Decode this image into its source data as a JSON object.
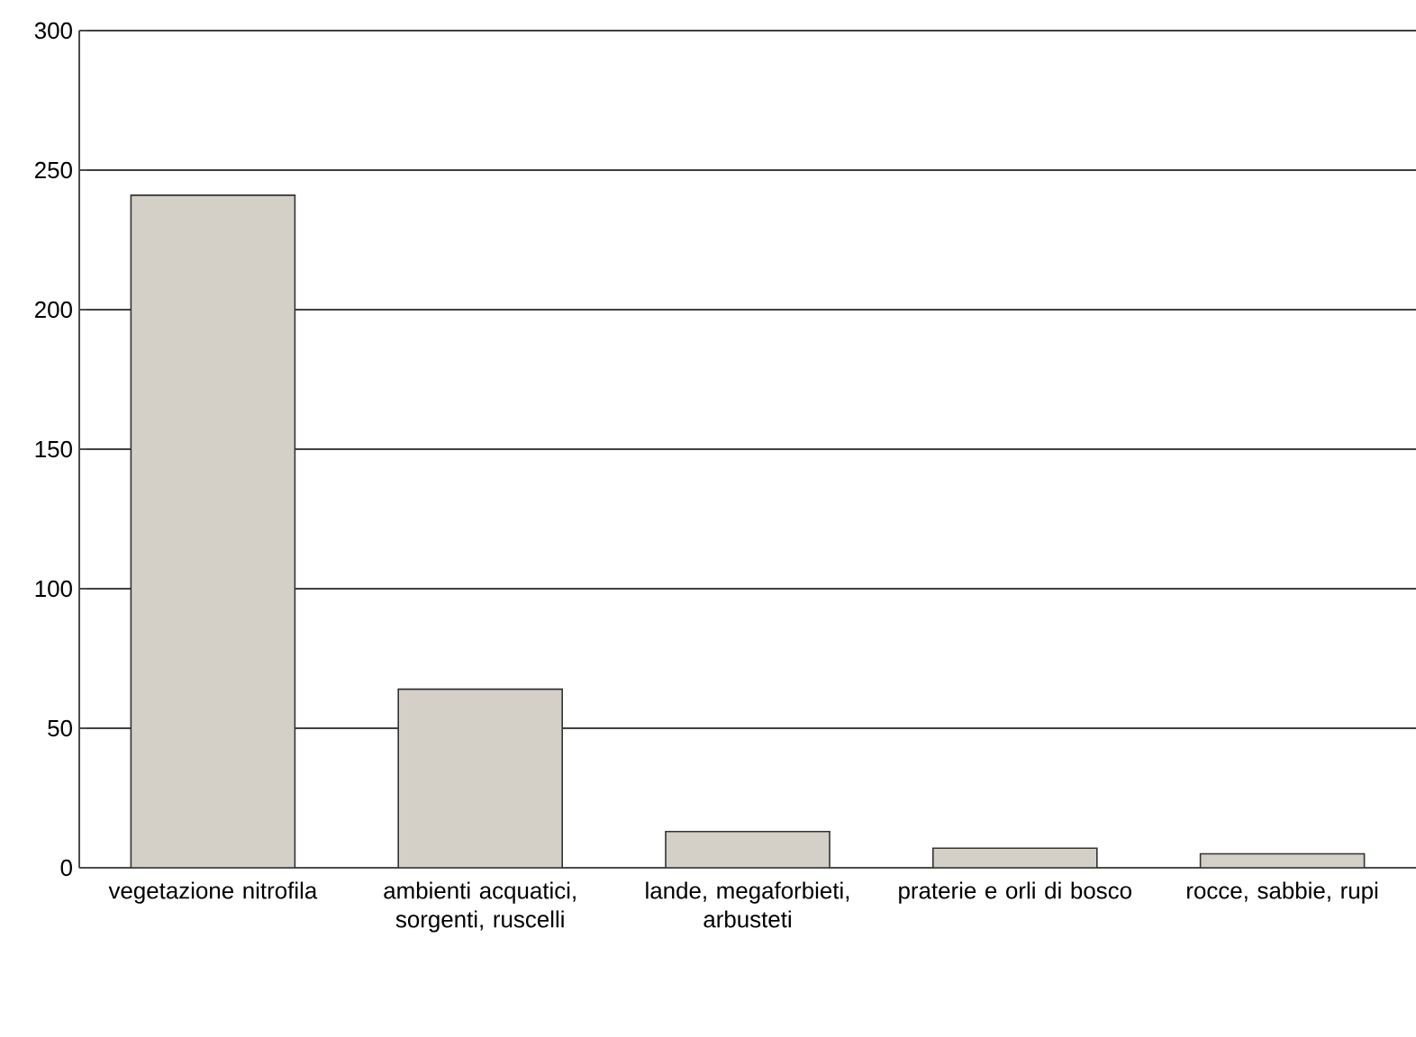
{
  "chart_data": {
    "type": "bar",
    "categories": [
      "vegetazione nitrofila",
      "ambienti acquatici, sorgenti, ruscelli",
      "lande, megaforbieti, arbusteti",
      "praterie e orli di bosco",
      "rocce, sabbie, rupi"
    ],
    "values": [
      241,
      64,
      13,
      7,
      5
    ],
    "color": "#d4d0c8",
    "ylim": [
      0,
      300
    ],
    "yticks": [
      0,
      50,
      100,
      150,
      200,
      250,
      300
    ],
    "grid": "y"
  }
}
